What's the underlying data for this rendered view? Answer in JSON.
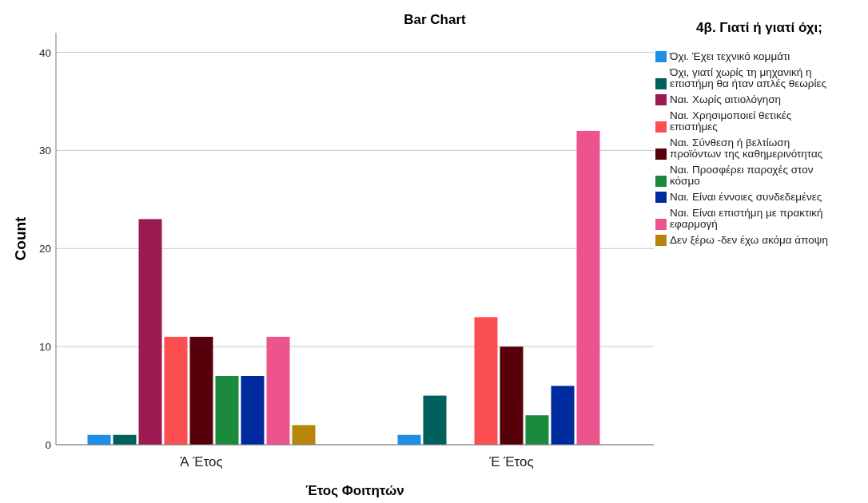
{
  "chart_data": {
    "type": "bar",
    "title": "Bar Chart",
    "xlabel": "Έτος Φοιτητών",
    "ylabel": "Count",
    "legend_title": "4β. Γιατί ή γιατί όχι;",
    "categories": [
      "Ά Έτος",
      "Έ Έτος"
    ],
    "series": [
      {
        "name": "Όχι. Έχει τεχνικό κομμάτι",
        "color": "#1f8fe5",
        "values": [
          1,
          1
        ]
      },
      {
        "name": "Όχι, γιατί χωρίς τη μηχανική η επιστήμη θα ήταν απλές θεωρίες",
        "color": "#00605e",
        "values": [
          1,
          5
        ]
      },
      {
        "name": "Ναι. Χωρίς αιτιολόγηση",
        "color": "#9b1a50",
        "values": [
          23,
          null
        ]
      },
      {
        "name": "Ναι. Χρησιμοποιεί θετικές επιστήμες",
        "color": "#fb4f52",
        "values": [
          11,
          13
        ]
      },
      {
        "name": "Ναι. Σύνθεση ή βελτίωση προϊόντων της καθημερινότητας",
        "color": "#55000a",
        "values": [
          11,
          10
        ]
      },
      {
        "name": "Ναι. Προσφέρει παροχές στον κόσμο",
        "color": "#1a8a3c",
        "values": [
          7,
          3
        ]
      },
      {
        "name": "Ναι. Είναι έννοιες συνδεδεμένες",
        "color": "#002b9e",
        "values": [
          7,
          6
        ]
      },
      {
        "name": "Ναι. Είναι επιστήμη με πρακτική εφαρμογή",
        "color": "#ed548e",
        "values": [
          11,
          32
        ]
      },
      {
        "name": "Δεν ξέρω -δεν έχω ακόμα άποψη",
        "color": "#b5860a",
        "values": [
          2,
          null
        ]
      }
    ],
    "ylim": [
      0,
      42
    ],
    "yticks": [
      0,
      10,
      20,
      30,
      40
    ],
    "grid": "y",
    "legend": "right"
  }
}
